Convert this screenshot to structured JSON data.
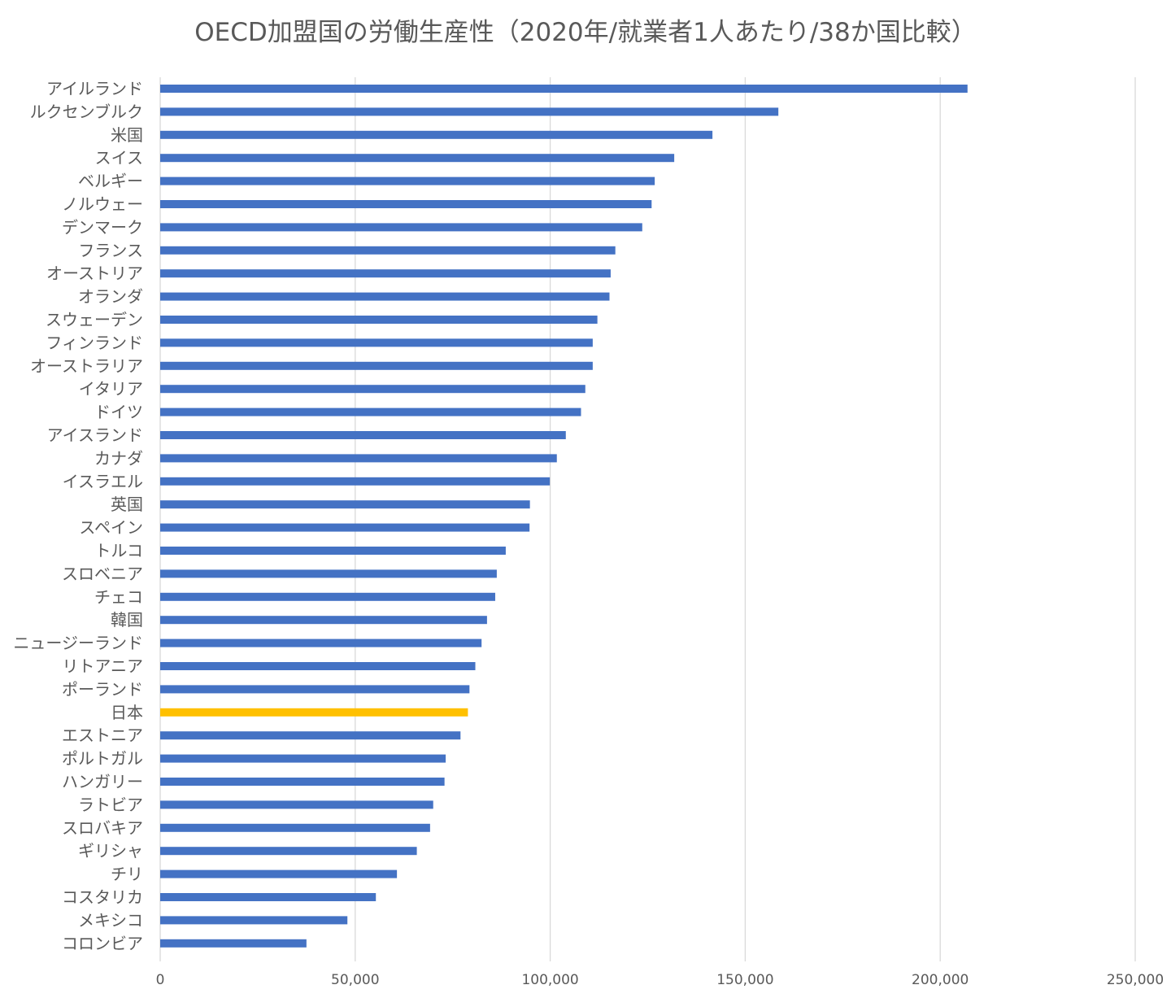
{
  "chart_data": {
    "type": "bar",
    "orientation": "horizontal",
    "title": "OECD加盟国の労働生産性（2020年/就業者1人あたり/38か国比較）",
    "xlabel": "",
    "ylabel": "",
    "xlim": [
      0,
      250000
    ],
    "x_ticks": [
      "0",
      "50,000",
      "100,000",
      "150,000",
      "200,000",
      "250,000"
    ],
    "grid": "vertical",
    "legend": "none",
    "colors": {
      "default": "#4472C4",
      "highlight": "#FFC000",
      "grid": "#D9D9D9",
      "text": "#595959"
    },
    "highlight_category": "日本",
    "categories": [
      "アイルランド",
      "ルクセンブルク",
      "米国",
      "スイス",
      "ベルギー",
      "ノルウェー",
      "デンマーク",
      "フランス",
      "オーストリア",
      "オランダ",
      "スウェーデン",
      "フィンランド",
      "オーストラリア",
      "イタリア",
      "ドイツ",
      "アイスランド",
      "カナダ",
      "イスラエル",
      "英国",
      "スペイン",
      "トルコ",
      "スロベニア",
      "チェコ",
      "韓国",
      "ニュージーランド",
      "リトアニア",
      "ポーランド",
      "日本",
      "エストニア",
      "ポルトガル",
      "ハンガリー",
      "ラトビア",
      "スロバキア",
      "ギリシャ",
      "チリ",
      "コスタリカ",
      "メキシコ",
      "コロンビア"
    ],
    "values": [
      207000,
      158500,
      141600,
      131800,
      126800,
      126000,
      123600,
      116700,
      115500,
      115200,
      112100,
      110900,
      110900,
      109000,
      107900,
      104000,
      101700,
      99900,
      94800,
      94700,
      88600,
      86300,
      85900,
      83800,
      82400,
      80800,
      79300,
      78900,
      77000,
      73200,
      72900,
      70000,
      69200,
      65800,
      60700,
      55300,
      48000,
      37500
    ]
  }
}
